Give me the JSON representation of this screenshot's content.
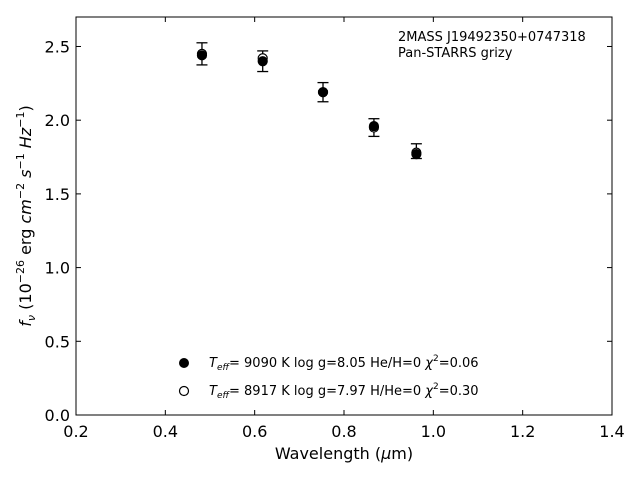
{
  "chart_data": {
    "type": "scatter",
    "xlabel_prefix": "Wavelength (",
    "xlabel_mu": "μ",
    "xlabel_suffix": "m)",
    "ylabel_f": "f",
    "ylabel_nu": "ν",
    "ylabel_rest": " (10",
    "ylabel_exp1": "−26",
    "ylabel_erg": " erg ",
    "ylabel_cm": "cm",
    "ylabel_exp2": "−2",
    "ylabel_s": " s",
    "ylabel_exp3": "−1",
    "ylabel_hz": " Hz",
    "ylabel_exp4": "−1",
    "ylabel_close": ")",
    "xlim": [
      0.2,
      1.4
    ],
    "ylim": [
      0.0,
      2.7
    ],
    "xticks": [
      0.2,
      0.4,
      0.6,
      0.8,
      1.0,
      1.2,
      1.4
    ],
    "xtick_labels": [
      "0.2",
      "0.4",
      "0.6",
      "0.8",
      "1.0",
      "1.2",
      "1.4"
    ],
    "yticks": [
      0.0,
      0.5,
      1.0,
      1.5,
      2.0,
      2.5
    ],
    "ytick_labels": [
      "0.0",
      "0.5",
      "1.0",
      "1.5",
      "2.0",
      "2.5"
    ],
    "grid": false,
    "annotation": [
      "2MASS J19492350+0747318",
      "Pan-STARRS grizy"
    ],
    "observed": {
      "x": [
        0.482,
        0.618,
        0.753,
        0.867,
        0.962
      ],
      "y": [
        2.45,
        2.4,
        2.19,
        1.95,
        1.79
      ],
      "yerr": [
        0.075,
        0.07,
        0.065,
        0.06,
        0.05
      ]
    },
    "series": [
      {
        "marker": "filled-circle",
        "x": [
          0.482,
          0.618,
          0.753,
          0.867,
          0.962
        ],
        "y": [
          2.44,
          2.4,
          2.19,
          1.96,
          1.77
        ],
        "label_teff": "T",
        "label_eff": "eff",
        "label_rest": "=  9090 K  log g=8.05  He/H=0  ",
        "label_chi": "χ",
        "label_chi_exp": "2",
        "label_chi_val": "=0.06"
      },
      {
        "marker": "open-circle",
        "x": [
          0.482,
          0.618,
          0.753,
          0.867,
          0.962
        ],
        "y": [
          2.45,
          2.42,
          2.19,
          1.95,
          1.78
        ],
        "label_teff": "T",
        "label_eff": "eff",
        "label_rest": "=  8917 K  log g=7.97  H/He=0  ",
        "label_chi": "χ",
        "label_chi_exp": "2",
        "label_chi_val": "=0.30"
      }
    ]
  }
}
